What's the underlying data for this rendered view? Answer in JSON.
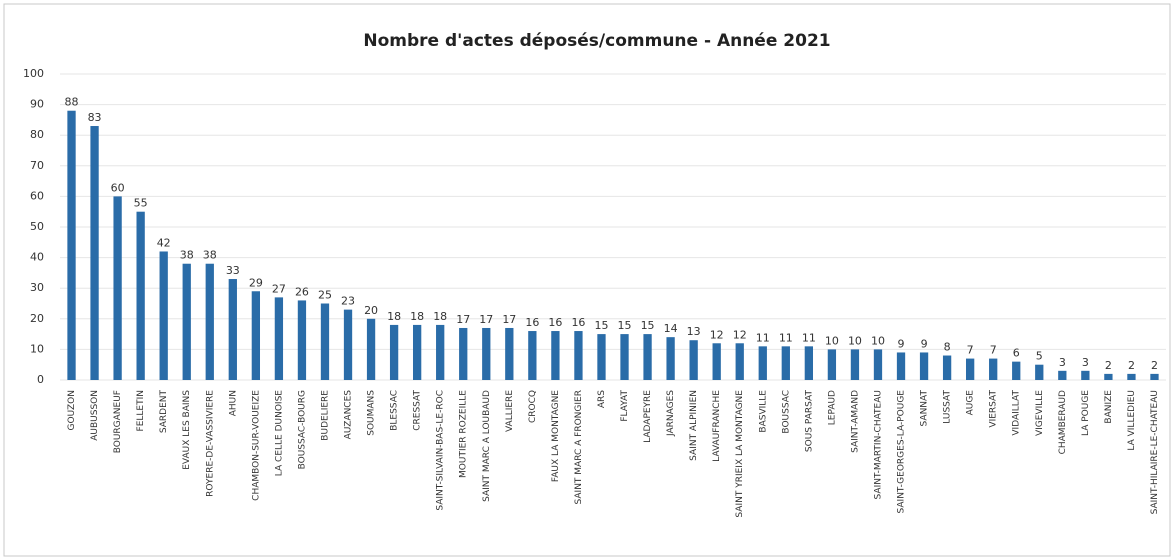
{
  "chart_data": {
    "type": "bar",
    "title": "Nombre d'actes déposés/commune - Année 2021",
    "categories": [
      "GOUZON",
      "AUBUSSON",
      "BOURGANEUF",
      "FELLETIN",
      "SARDENT",
      "EVAUX LES BAINS",
      "ROYERE-DE-VASSIVIERE",
      "AHUN",
      "CHAMBON-SUR-VOUEIZE",
      "LA CELLE DUNOISE",
      "BOUSSAC-BOURG",
      "BUDELIERE",
      "AUZANCES",
      "SOUMANS",
      "BLESSAC",
      "CRESSAT",
      "SAINT-SILVAIN-BAS-LE-ROC",
      "MOUTIER ROZEILLE",
      "SAINT MARC A LOUBAUD",
      "VALLIERE",
      "CROCQ",
      "FAUX LA MONTAGNE",
      "SAINT MARC A FRONGIER",
      "ARS",
      "FLAYAT",
      "LADAPEYRE",
      "JARNAGES",
      "SAINT ALPINIEN",
      "LAVAUFRANCHE",
      "SAINT YRIEIX LA MONTAGNE",
      "BASVILLE",
      "BOUSSAC",
      "SOUS PARSAT",
      "LEPAUD",
      "SAINT-AMAND",
      "SAINT-MARTIN-CHATEAU",
      "SAINT-GEORGES-LA-POUGE",
      "SANNAT",
      "LUSSAT",
      "AUGE",
      "VIERSAT",
      "VIDAILLAT",
      "VIGEVILLE",
      "CHAMBERAUD",
      "LA POUGE",
      "BANIZE",
      "LA VILLEDIEU",
      "SAINT-HILAIRE-LE-CHATEAU"
    ],
    "values": [
      88,
      83,
      60,
      55,
      42,
      38,
      38,
      33,
      29,
      27,
      26,
      25,
      23,
      20,
      18,
      18,
      18,
      17,
      17,
      17,
      16,
      16,
      16,
      15,
      15,
      15,
      14,
      13,
      12,
      12,
      11,
      11,
      11,
      10,
      10,
      10,
      9,
      9,
      8,
      7,
      7,
      6,
      5,
      3,
      3,
      2,
      2,
      2
    ],
    "color": "#2a6ca8",
    "ylim": [
      0,
      100
    ],
    "yticks": [
      0,
      10,
      20,
      30,
      40,
      50,
      60,
      70,
      80,
      90,
      100
    ],
    "grid": true
  }
}
